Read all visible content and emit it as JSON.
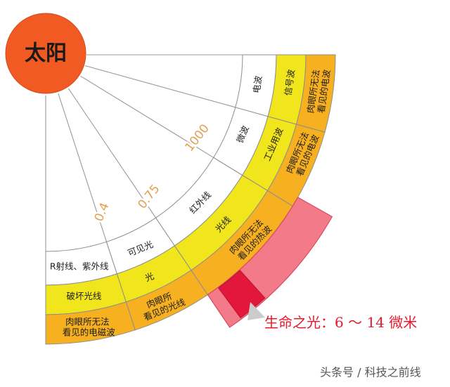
{
  "sun": {
    "label": "太阳"
  },
  "wavelength_marks": [
    "0.4",
    "0.75",
    "1000"
  ],
  "inner_band": [
    "R射线、紫外线",
    "可见光",
    "红外线",
    "微波",
    "电波"
  ],
  "middle_band": [
    "破坏光线",
    "光",
    "光线",
    "工业用波",
    "信号波"
  ],
  "outer_band": [
    [
      "肉眼所无法",
      "看见的电磁波"
    ],
    [
      "肉眼所",
      "看见的光线"
    ],
    [
      "肉眼所无法",
      "看见的热波"
    ],
    [
      "肉眼所无法",
      "看见的电波"
    ],
    [
      "肉眼所无法",
      "看见的电波"
    ]
  ],
  "callout": "生命之光：6 ～ 14 微米",
  "watermark": "头条号 / 科技之前线",
  "colors": {
    "sun": "#f15a22",
    "inner_band": "#ffffff",
    "middle_band": "#f1e61b",
    "outer_band": "#f6b020",
    "highlight": "#f37a89",
    "highlight_core": "#e3173a",
    "pointer": "#cccccc",
    "marks": "#e0a050",
    "callout": "#e8192c"
  }
}
